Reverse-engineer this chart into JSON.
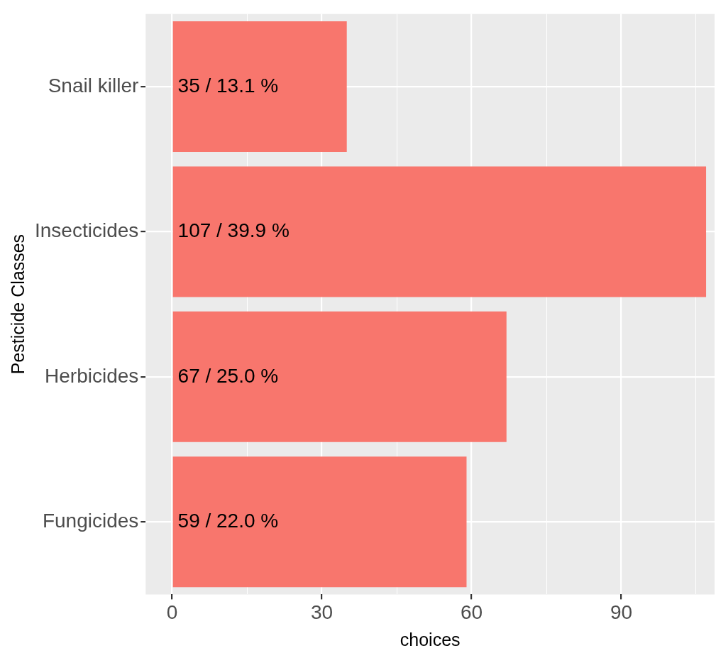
{
  "chart_data": {
    "type": "bar",
    "orientation": "horizontal",
    "xlabel": "choices",
    "ylabel": "Pesticide Classes",
    "categories": [
      "Snail killer",
      "Insecticides",
      "Herbicides",
      "Fungicides"
    ],
    "values": [
      35,
      107,
      67,
      59
    ],
    "value_labels": [
      "35 / 13.1 %",
      "107 / 39.9 %",
      "67 / 25.0 %",
      "59 / 22.0 %"
    ],
    "color": "#f8766d",
    "xlim": [
      -5.3,
      108.7
    ],
    "xticks": [
      0,
      {
        "value": 15,
        "label": null
      },
      30,
      {
        "value": 45,
        "label": null
      },
      60,
      {
        "value": 75,
        "label": null
      },
      90,
      {
        "value": 105,
        "label": null
      }
    ],
    "grid": true
  }
}
